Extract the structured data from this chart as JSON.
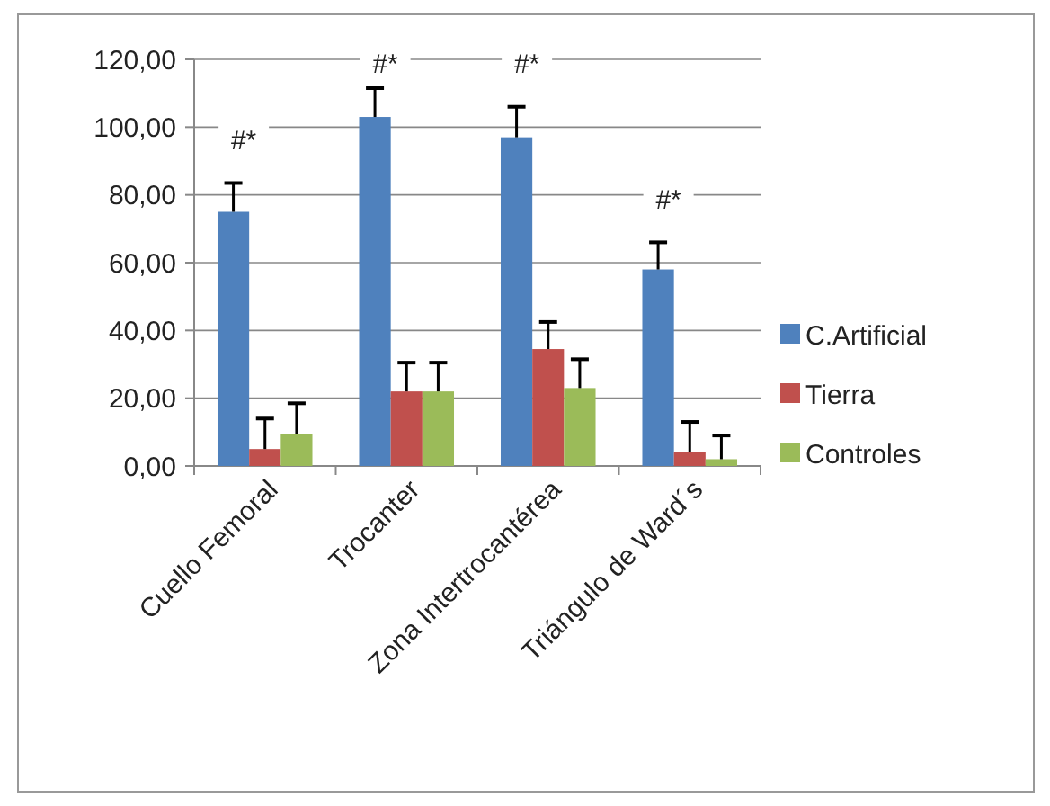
{
  "chart_data": {
    "type": "bar",
    "categories": [
      "Cuello Femoral",
      "Trocanter",
      "Zona Intertrocantérea",
      "Triángulo de Ward´s"
    ],
    "series": [
      {
        "name": "C.Artificial",
        "color": "#4f81bd",
        "values": [
          75,
          103,
          97,
          58
        ],
        "errors": [
          [
            75,
            83.5
          ],
          [
            103,
            111.5
          ],
          [
            97,
            106
          ],
          [
            58,
            66
          ]
        ]
      },
      {
        "name": "Tierra",
        "color": "#c0504d",
        "values": [
          5,
          22,
          34.5,
          4
        ],
        "errors": [
          [
            5,
            14
          ],
          [
            22,
            30.5
          ],
          [
            34.5,
            42.5
          ],
          [
            4,
            13
          ]
        ]
      },
      {
        "name": "Controles",
        "color": "#9bbb59",
        "values": [
          9.5,
          22,
          23,
          2
        ],
        "errors": [
          [
            9.5,
            18.5
          ],
          [
            22,
            30.5
          ],
          [
            23,
            31.5
          ],
          [
            2,
            9
          ]
        ]
      }
    ],
    "ylim": [
      0,
      120
    ],
    "yticks": [
      {
        "value": 0,
        "label": "0,00"
      },
      {
        "value": 20,
        "label": "20,00"
      },
      {
        "value": 40,
        "label": "40,00"
      },
      {
        "value": 60,
        "label": "60,00"
      },
      {
        "value": 80,
        "label": "80,00"
      },
      {
        "value": 100,
        "label": "100,00"
      },
      {
        "value": 120,
        "label": "120,00"
      }
    ],
    "annotations": [
      "#*",
      "#*",
      "#*",
      "#*"
    ],
    "grid": "y",
    "legend": "right"
  }
}
